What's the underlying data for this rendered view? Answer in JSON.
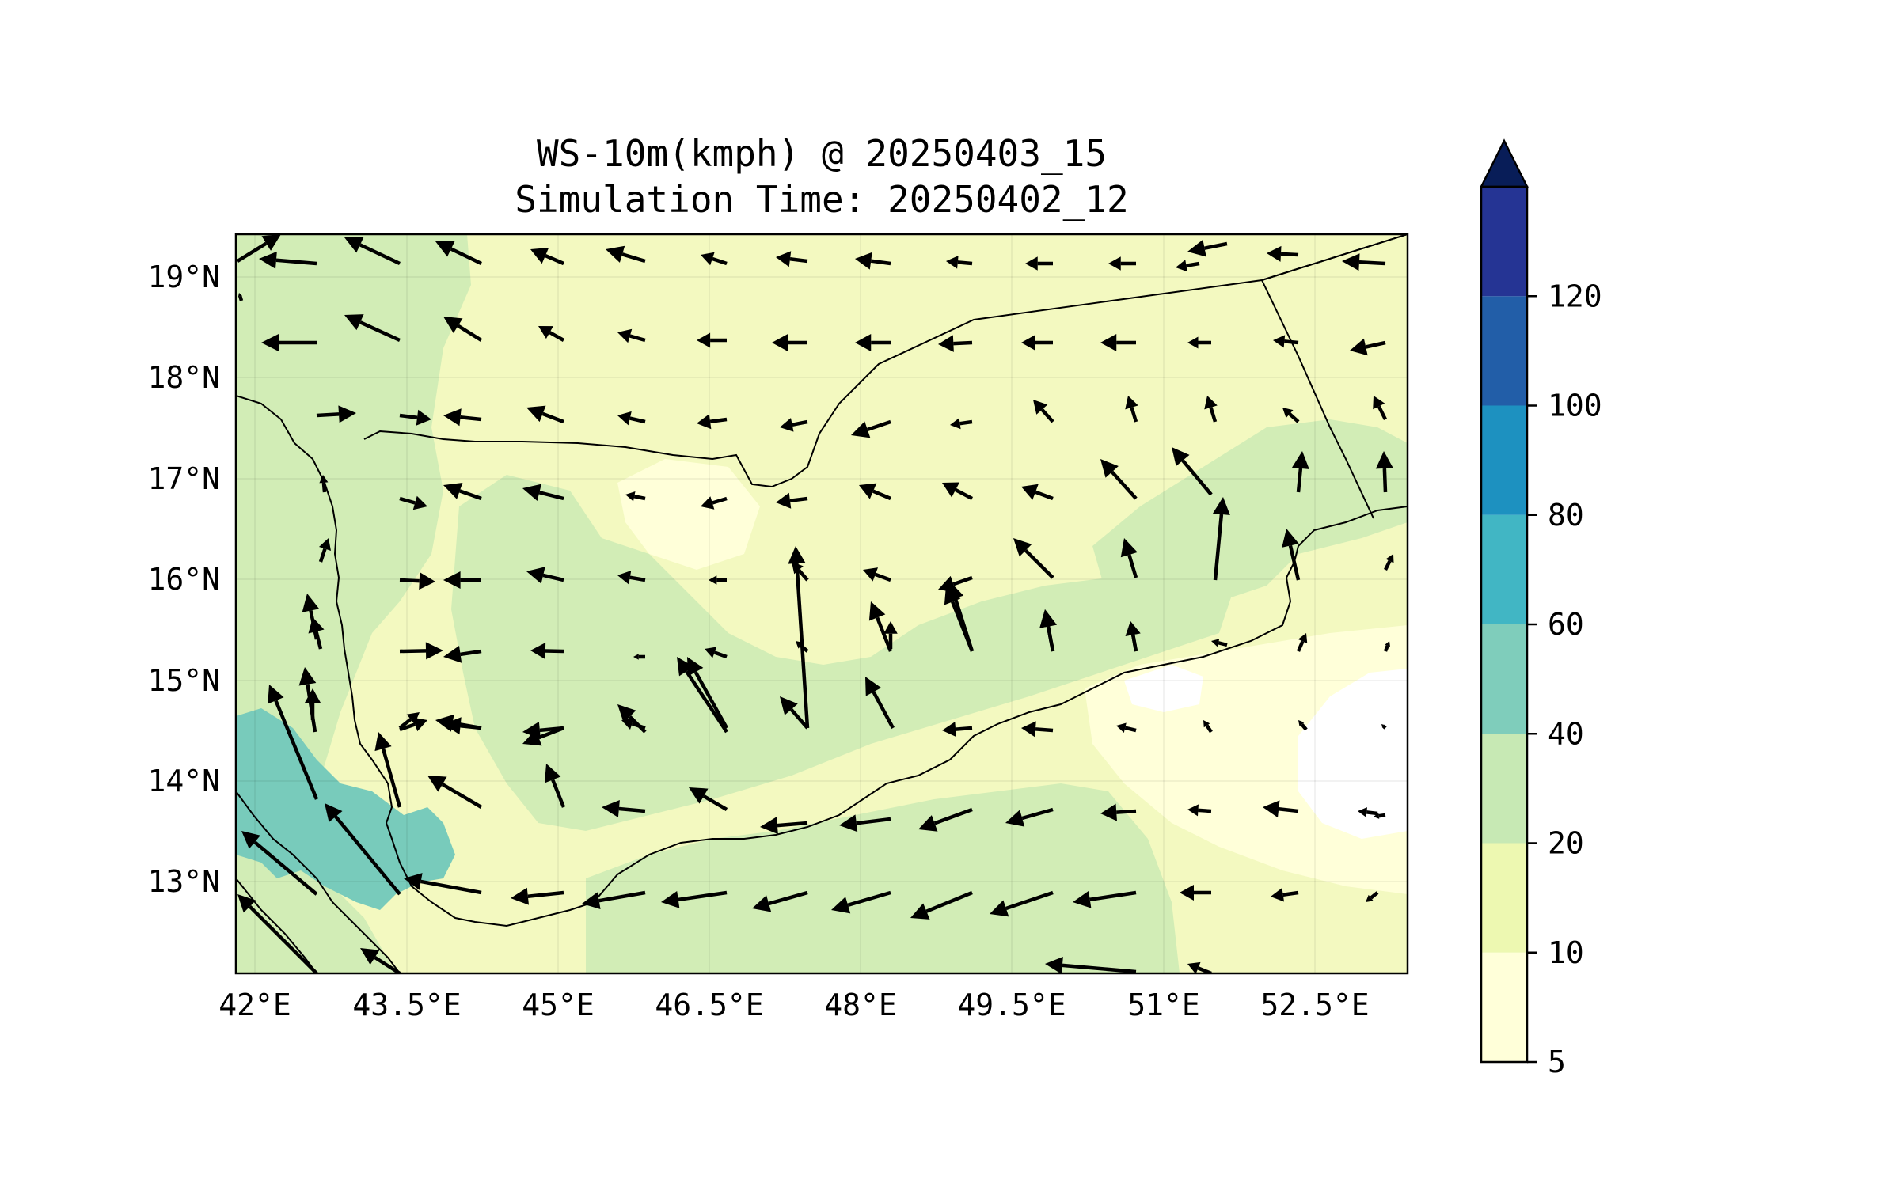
{
  "title_line1": "WS-10m(kmph) @ 20250403_15",
  "title_line2": "Simulation Time: 20250402_12",
  "x_ticks": [
    "42°E",
    "43.5°E",
    "45°E",
    "46.5°E",
    "48°E",
    "49.5°E",
    "51°E",
    "52.5°E"
  ],
  "y_ticks": [
    "19°N",
    "18°N",
    "17°N",
    "16°N",
    "15°N",
    "14°N",
    "13°N"
  ],
  "colorbar": {
    "levels": [
      "5",
      "10",
      "20",
      "40",
      "60",
      "80",
      "100",
      "120"
    ],
    "colors": [
      "#ffffd9",
      "#edf8b1",
      "#c7e9b4",
      "#7fcdbb",
      "#41b6c4",
      "#1d91c0",
      "#225ea8",
      "#253494"
    ],
    "extend_color": "#081d58"
  },
  "map_colors": {
    "calm": "#ffffff",
    "band_5_10": "#ffffd9",
    "band_10_20": "#f3f9c0",
    "band_20_40": "#d2edb6",
    "band_40_60": "#78cbbb"
  }
}
